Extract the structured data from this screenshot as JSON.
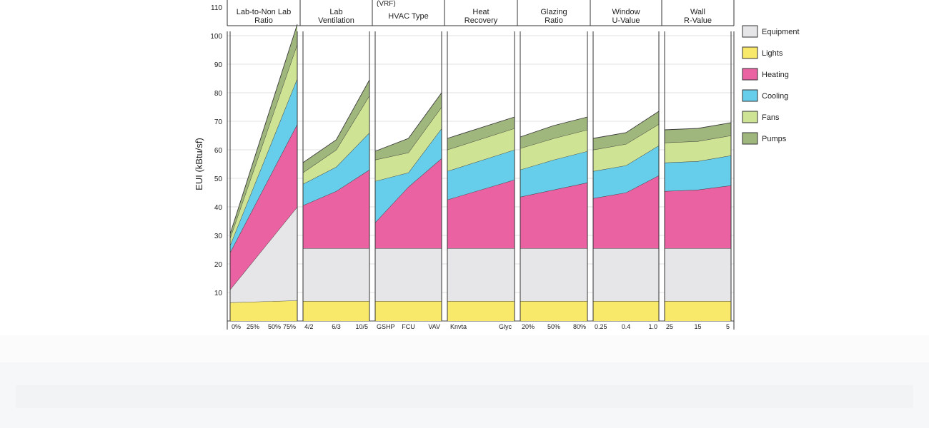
{
  "chart_data": {
    "type": "area",
    "ylabel": "EUI (kBtu/sf)",
    "ylim": [
      0,
      110
    ],
    "yticks": [
      10,
      20,
      30,
      40,
      50,
      60,
      70,
      80,
      90,
      100,
      110
    ],
    "grid": true,
    "legend_position": "right",
    "stack_order": [
      "Lights",
      "Equipment",
      "Heating",
      "Cooling",
      "Fans",
      "Pumps"
    ],
    "series_colors": {
      "Lights": "#f8e96a",
      "Equipment": "#e6e6e8",
      "Heating": "#ea62a1",
      "Cooling": "#66cdeb",
      "Fans": "#cfe394",
      "Pumps": "#9fb67c"
    },
    "legend": [
      {
        "name": "Equipment",
        "color": "#e6e6e8"
      },
      {
        "name": "Lights",
        "color": "#f8e96a"
      },
      {
        "name": "Heating",
        "color": "#ea62a1"
      },
      {
        "name": "Cooling",
        "color": "#66cdeb"
      },
      {
        "name": "Fans",
        "color": "#cfe394"
      },
      {
        "name": "Pumps",
        "color": "#9fb67c"
      }
    ],
    "panels": [
      {
        "title": [
          "Lab-to-Non Lab",
          "Ratio"
        ],
        "extra_label": "",
        "ticks": [
          "0%",
          "25%",
          "50%",
          "75%"
        ],
        "x": [
          0,
          1
        ],
        "stacked_tops": {
          "Lights": [
            6.5,
            7.2
          ],
          "Equipment": [
            11,
            40
          ],
          "Heating": [
            24,
            69
          ],
          "Cooling": [
            26.5,
            85
          ],
          "Fans": [
            29,
            97
          ],
          "Pumps": [
            30.5,
            104
          ]
        }
      },
      {
        "title": [
          "Lab",
          "Ventilation"
        ],
        "extra_label": "",
        "ticks": [
          "4/2",
          "6/3",
          "10/5"
        ],
        "x": [
          0,
          0.5,
          1
        ],
        "stacked_tops": {
          "Lights": [
            7,
            7,
            7
          ],
          "Equipment": [
            25.5,
            25.5,
            25.5
          ],
          "Heating": [
            40.5,
            45.5,
            53
          ],
          "Cooling": [
            48,
            54,
            66
          ],
          "Fans": [
            52,
            60,
            79
          ],
          "Pumps": [
            55.5,
            63.5,
            84.5
          ]
        }
      },
      {
        "title": [
          "HVAC Type"
        ],
        "extra_label": "(VRF)",
        "ticks": [
          "GSHP",
          "FCU",
          "VAV"
        ],
        "x": [
          0,
          0.5,
          1
        ],
        "stacked_tops": {
          "Lights": [
            7,
            7,
            7
          ],
          "Equipment": [
            25.5,
            25.5,
            25.5
          ],
          "Heating": [
            34.5,
            47,
            57
          ],
          "Cooling": [
            49,
            52,
            67.5
          ],
          "Fans": [
            56.5,
            59,
            75
          ],
          "Pumps": [
            59.5,
            64,
            80
          ]
        }
      },
      {
        "title": [
          "Heat",
          "Recovery"
        ],
        "extra_label": "",
        "ticks": [
          "Knvta",
          "Glyc"
        ],
        "x": [
          0,
          1
        ],
        "stacked_tops": {
          "Lights": [
            7,
            7
          ],
          "Equipment": [
            25.5,
            25.5
          ],
          "Heating": [
            42.5,
            49.5
          ],
          "Cooling": [
            52.5,
            60
          ],
          "Fans": [
            60,
            67.5
          ],
          "Pumps": [
            64,
            71.5
          ]
        }
      },
      {
        "title": [
          "Glazing",
          "Ratio"
        ],
        "extra_label": "",
        "ticks": [
          "20%",
          "50%",
          "80%"
        ],
        "x": [
          0,
          0.5,
          1
        ],
        "stacked_tops": {
          "Lights": [
            7,
            7,
            7
          ],
          "Equipment": [
            25.5,
            25.5,
            25.5
          ],
          "Heating": [
            43.5,
            46,
            48.5
          ],
          "Cooling": [
            53,
            56.5,
            59.5
          ],
          "Fans": [
            60.5,
            64,
            67
          ],
          "Pumps": [
            64.5,
            68.5,
            71.5
          ]
        }
      },
      {
        "title": [
          "Window",
          "U-Value"
        ],
        "extra_label": "",
        "ticks": [
          "0.25",
          "0.4",
          "1.0"
        ],
        "x": [
          0,
          0.5,
          1
        ],
        "stacked_tops": {
          "Lights": [
            7,
            7,
            7
          ],
          "Equipment": [
            25.5,
            25.5,
            25.5
          ],
          "Heating": [
            43,
            45,
            51
          ],
          "Cooling": [
            52.5,
            54.5,
            61.5
          ],
          "Fans": [
            60,
            62,
            69
          ],
          "Pumps": [
            64,
            66,
            73.5
          ]
        }
      },
      {
        "title": [
          "Wall",
          "R-Value"
        ],
        "extra_label": "",
        "ticks": [
          "25",
          "15",
          "5"
        ],
        "x": [
          0,
          0.5,
          1
        ],
        "stacked_tops": {
          "Lights": [
            7,
            7,
            7
          ],
          "Equipment": [
            25.5,
            25.5,
            25.5
          ],
          "Heating": [
            45.5,
            46,
            47.5
          ],
          "Cooling": [
            55.5,
            56,
            58
          ],
          "Fans": [
            62.5,
            63,
            65
          ],
          "Pumps": [
            67,
            67.5,
            69.5
          ]
        }
      }
    ]
  }
}
